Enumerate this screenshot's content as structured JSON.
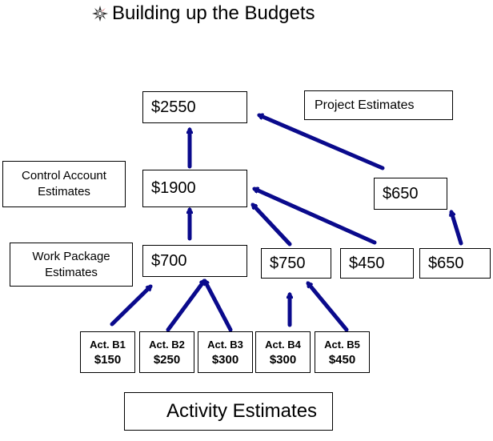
{
  "title": "Building up the Budgets",
  "colors": {
    "arrow": "#0a0a8c",
    "logo_red": "#c0282d"
  },
  "project": {
    "amount": "$2550",
    "label": "Project Estimates"
  },
  "control_account": {
    "amount": "$1900",
    "label": "Control Account Estimates",
    "side_amount": "$650"
  },
  "work_package": {
    "label": "Work Package Estimates",
    "amounts": [
      "$700",
      "$750",
      "$450",
      "$650"
    ]
  },
  "activities": [
    {
      "name": "Act. B1",
      "value": "$150"
    },
    {
      "name": "Act. B2",
      "value": "$250"
    },
    {
      "name": "Act. B3",
      "value": "$300"
    },
    {
      "name": "Act. B4",
      "value": "$300"
    },
    {
      "name": "Act. B5",
      "value": "$450"
    }
  ],
  "activity_label": "Activity Estimates"
}
